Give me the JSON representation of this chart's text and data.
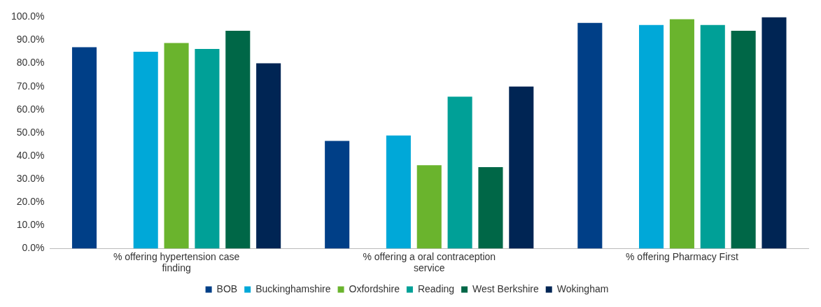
{
  "chart_data": {
    "type": "bar",
    "categories": [
      "% offering hypertension case finding",
      "% offering a oral contraception service",
      "% offering Pharmacy First"
    ],
    "series": [
      {
        "name": "BOB",
        "color": "#003f87",
        "values": [
          87,
          46.5,
          97.5
        ]
      },
      {
        "color": "#ffffff",
        "values": [
          null,
          null,
          null
        ]
      },
      {
        "name": "Buckinghamshire",
        "color": "#00a8d8",
        "values": [
          85,
          48.8,
          96.6
        ]
      },
      {
        "name": "Oxfordshire",
        "color": "#6ab42d",
        "values": [
          88.8,
          36,
          99.1
        ]
      },
      {
        "name": "Reading",
        "color": "#00a097",
        "values": [
          86.2,
          65.6,
          96.6
        ]
      },
      {
        "name": "West Berkshire",
        "color": "#006747",
        "values": [
          94.1,
          35.2,
          94.1
        ]
      },
      {
        "name": "Wokingham",
        "color": "#002554",
        "values": [
          80,
          70,
          100
        ]
      }
    ],
    "ylim": [
      0,
      100
    ],
    "yticks": [
      {
        "value": 0,
        "label": "0.0%"
      },
      {
        "value": 10,
        "label": "10.0%"
      },
      {
        "value": 20,
        "label": "20.0%"
      },
      {
        "value": 30,
        "label": "30.0%"
      },
      {
        "value": 40,
        "label": "40.0%"
      },
      {
        "value": 50,
        "label": "50.0%"
      },
      {
        "value": 60,
        "label": "60.0%"
      },
      {
        "value": 70,
        "label": "70.0%"
      },
      {
        "value": 80,
        "label": "80.0%"
      },
      {
        "value": 90,
        "label": "90.0%"
      },
      {
        "value": 100,
        "label": "100.0%"
      }
    ],
    "grid": false,
    "legend": "bottom"
  }
}
